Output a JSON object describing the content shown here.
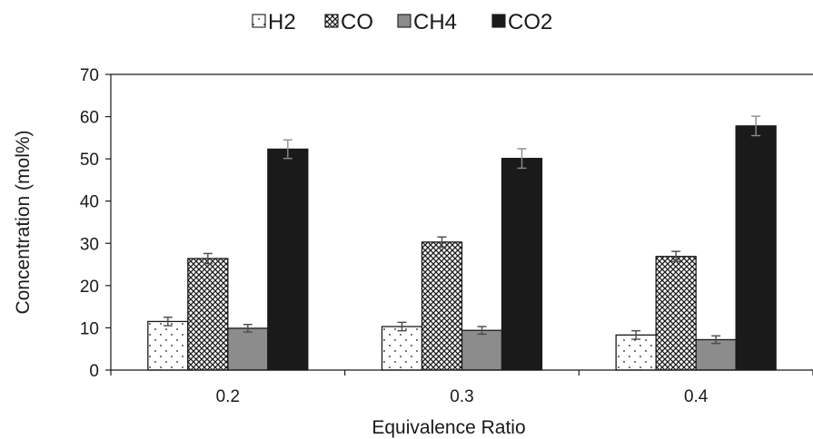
{
  "chart_data": {
    "type": "bar",
    "title": "",
    "xlabel": "Equivalence Ratio",
    "ylabel": "Concentration (mol%)",
    "categories": [
      "0.2",
      "0.3",
      "0.4"
    ],
    "ylim": [
      0,
      70
    ],
    "yticks": [
      0,
      10,
      20,
      30,
      40,
      50,
      60,
      70
    ],
    "grid": false,
    "legend_position": "top",
    "error_bars": true,
    "series": [
      {
        "name": "H2",
        "values": [
          11.5,
          10.3,
          8.3
        ],
        "errors": [
          1.0,
          1.0,
          1.0
        ],
        "color": "#ffffff",
        "pattern": "dots"
      },
      {
        "name": "CO",
        "values": [
          26.4,
          30.3,
          26.9
        ],
        "errors": [
          1.2,
          1.2,
          1.2
        ],
        "color": "#ffffff",
        "pattern": "crosshatch"
      },
      {
        "name": "CH4",
        "values": [
          9.9,
          9.4,
          7.2
        ],
        "errors": [
          0.9,
          0.9,
          0.9
        ],
        "color": "#8c8c8c",
        "pattern": "solid"
      },
      {
        "name": "CO2",
        "values": [
          52.3,
          50.1,
          57.8
        ],
        "errors": [
          2.2,
          2.3,
          2.3
        ],
        "color": "#1a1a1a",
        "pattern": "solid"
      }
    ]
  }
}
